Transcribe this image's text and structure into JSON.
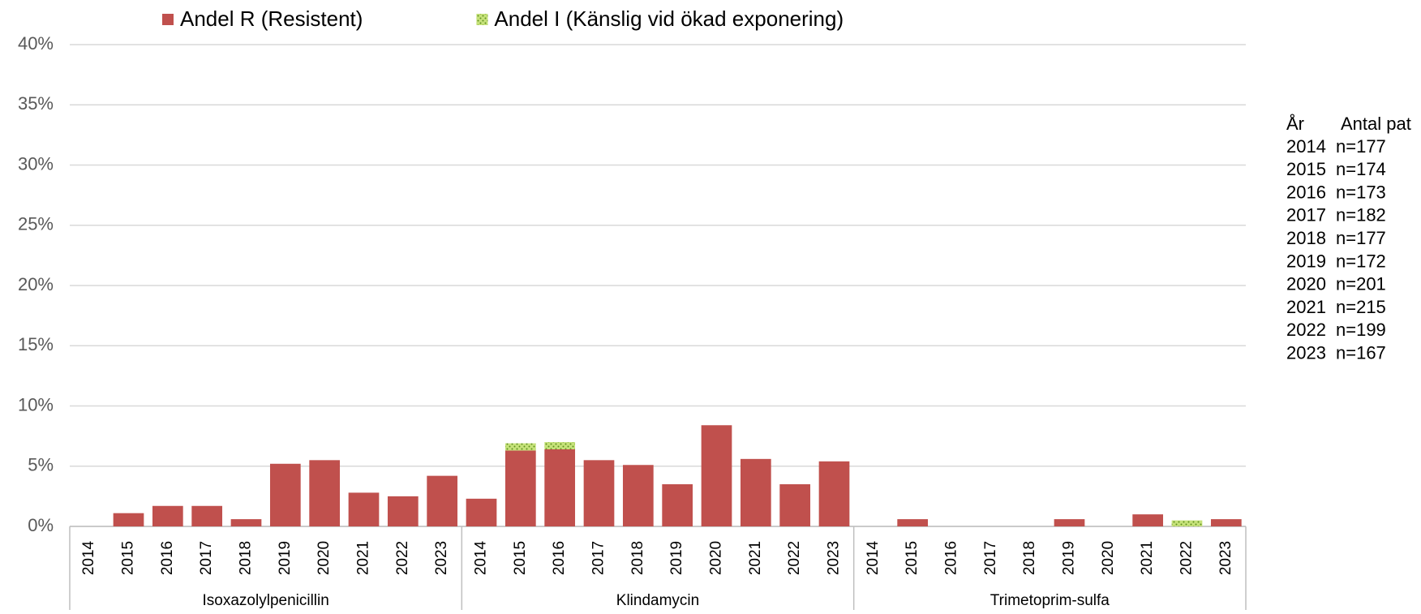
{
  "chart_data": {
    "type": "bar",
    "stacked": true,
    "groups": [
      "Isoxazolylpenicillin",
      "Klindamycin",
      "Trimetoprim-sulfa"
    ],
    "categories": [
      "2014",
      "2015",
      "2016",
      "2017",
      "2018",
      "2019",
      "2020",
      "2021",
      "2022",
      "2023",
      "2014",
      "2015",
      "2016",
      "2017",
      "2018",
      "2019",
      "2020",
      "2021",
      "2022",
      "2023",
      "2014",
      "2015",
      "2016",
      "2017",
      "2018",
      "2019",
      "2020",
      "2021",
      "2022",
      "2023"
    ],
    "series": [
      {
        "name": "Andel R (Resistent)",
        "color": "#c0504d",
        "values": [
          0,
          1.1,
          1.7,
          1.7,
          0.6,
          5.2,
          5.5,
          2.8,
          2.5,
          4.2,
          2.3,
          6.3,
          6.4,
          5.5,
          5.1,
          3.5,
          8.4,
          5.6,
          3.5,
          5.4,
          0,
          0.6,
          0,
          0,
          0,
          0.6,
          0,
          1.0,
          0,
          0.6
        ]
      },
      {
        "name": "Andel I (Känslig vid ökad exponering)",
        "color": "#c6e27a",
        "values": [
          0,
          0,
          0,
          0,
          0,
          0,
          0,
          0,
          0,
          0,
          0,
          0.6,
          0.6,
          0,
          0,
          0,
          0,
          0,
          0,
          0,
          0,
          0,
          0,
          0,
          0,
          0,
          0,
          0,
          0.5,
          0
        ]
      }
    ],
    "ylim": [
      0,
      40
    ],
    "yticks": [
      {
        "value": 0,
        "label": "0%"
      },
      {
        "value": 5,
        "label": "5%"
      },
      {
        "value": 10,
        "label": "10%"
      },
      {
        "value": 15,
        "label": "15%"
      },
      {
        "value": 20,
        "label": "20%"
      },
      {
        "value": 25,
        "label": "25%"
      },
      {
        "value": 30,
        "label": "30%"
      },
      {
        "value": 35,
        "label": "35%"
      },
      {
        "value": 40,
        "label": "40%"
      }
    ],
    "grid": true,
    "legend": "top"
  },
  "table": {
    "header": [
      "År",
      "Antal pat"
    ],
    "rows": [
      [
        "2014",
        "n=177"
      ],
      [
        "2015",
        "n=174"
      ],
      [
        "2016",
        "n=173"
      ],
      [
        "2017",
        "n=182"
      ],
      [
        "2018",
        "n=177"
      ],
      [
        "2019",
        "n=172"
      ],
      [
        "2020",
        "n=201"
      ],
      [
        "2021",
        "n=215"
      ],
      [
        "2022",
        "n=199"
      ],
      [
        "2023",
        "n=167"
      ]
    ]
  }
}
